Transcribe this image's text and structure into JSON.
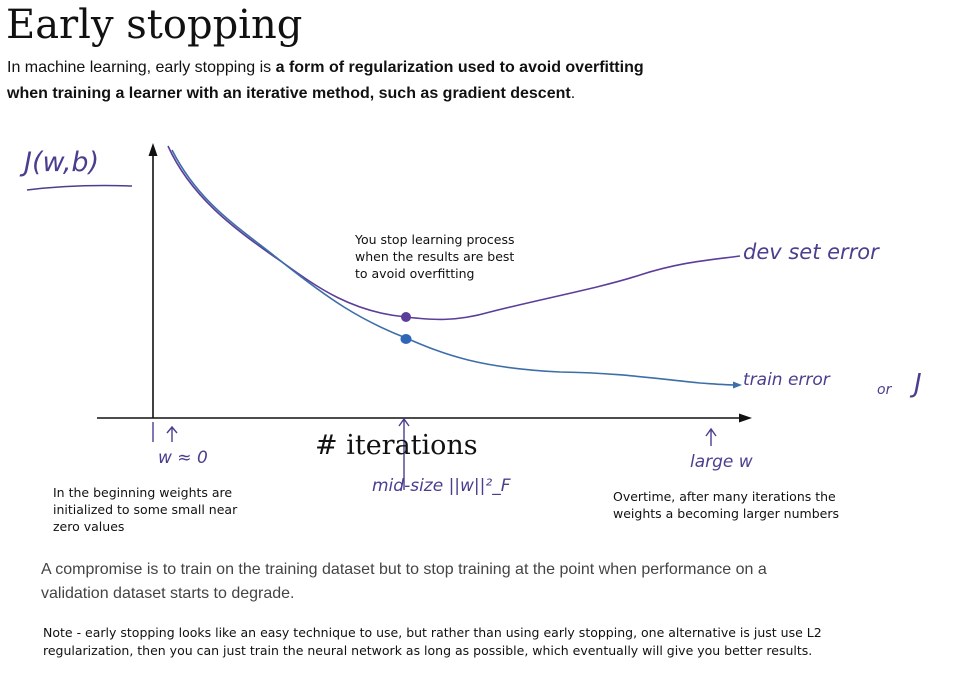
{
  "header": {
    "title": "Early stopping",
    "intro_plain_1": "In machine learning, early stopping is ",
    "intro_bold_1": "a form of regularization used to avoid overfitting",
    "intro_bold_2": "when training a learner with an iterative method, such as gradient descent",
    "intro_end": "."
  },
  "diagram": {
    "y_axis_label": "J(w,b)",
    "x_axis_label": "# iterations",
    "stop_note": [
      "You stop learning process",
      "when the results are best",
      "to avoid overfitting"
    ],
    "dev_curve_label": "dev set error",
    "train_curve_label": "train error",
    "or_text": "or",
    "j_text": "J",
    "left_mark": "w ≈ 0",
    "mid_mark": "mid-size  ||w||²_F",
    "right_mark": "large w",
    "left_note": [
      "In the beginning weights are",
      "initialized to some small near",
      "zero values"
    ],
    "right_note": [
      "Overtime, after many iterations the",
      "weights a becoming larger numbers"
    ],
    "colors": {
      "ink_purple": "#4a3f8f",
      "dev_curve": "#5b3e9a",
      "train_curve": "#3d6ea8",
      "axis": "#111111"
    }
  },
  "compromise": [
    "A compromise is to train on the training dataset but to stop training at the point when performance on a",
    "validation dataset starts to degrade."
  ],
  "note": [
    "Note - early stopping looks like an easy technique to use, but rather than using early stopping, one alternative is just use L2",
    "regularization, then you can just train the neural network as long as possible, which eventually will give you better results."
  ]
}
